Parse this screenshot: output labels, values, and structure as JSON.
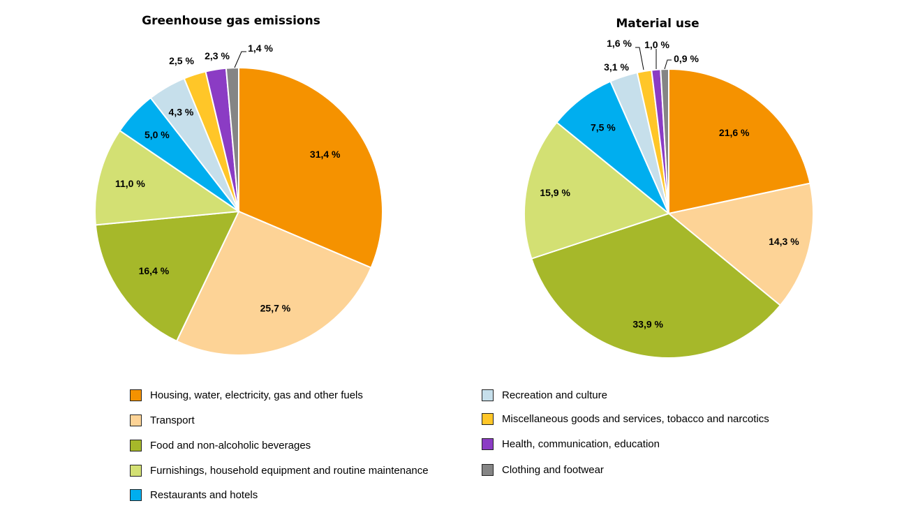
{
  "categories": [
    {
      "key": "housing",
      "label": "Housing, water, electricity, gas and other fuels",
      "color": "#F59200"
    },
    {
      "key": "transport",
      "label": "Transport",
      "color": "#FDD396"
    },
    {
      "key": "food",
      "label": "Food and non-alcoholic beverages",
      "color": "#A6B82A"
    },
    {
      "key": "furnishings",
      "label": "Furnishings, household equipment and routine maintenance",
      "color": "#D3E073"
    },
    {
      "key": "restaurants",
      "label": "Restaurants and hotels",
      "color": "#00AEEF"
    },
    {
      "key": "recreation",
      "label": "Recreation and culture",
      "color": "#C6DFEB"
    },
    {
      "key": "misc",
      "label": "Miscellaneous goods and services, tobacco and narcotics",
      "color": "#FFC628"
    },
    {
      "key": "health",
      "label": "Health, communication, education",
      "color": "#8B3CC4"
    },
    {
      "key": "clothing",
      "label": "Clothing and footwear",
      "color": "#858585"
    }
  ],
  "chart_data": [
    {
      "type": "pie",
      "title": "Greenhouse gas emissions",
      "categories": [
        "Housing, water, electricity, gas and other fuels",
        "Transport",
        "Food and non-alcoholic beverages",
        "Furnishings, household equipment and routine maintenance",
        "Restaurants and hotels",
        "Recreation and culture",
        "Miscellaneous goods and services, tobacco and narcotics",
        "Health, communication, education",
        "Clothing and footwear"
      ],
      "values": [
        31.4,
        25.7,
        16.4,
        11.0,
        5.0,
        4.3,
        2.5,
        2.3,
        1.4
      ],
      "labels": [
        "31,4 %",
        "25,7 %",
        "16,4 %",
        "11,0 %",
        "5,0 %",
        "4,3 %",
        "2,5 %",
        "2,3 %",
        "1,4 %"
      ],
      "unit": "%",
      "start": "12 o'clock, clockwise"
    },
    {
      "type": "pie",
      "title": "Material use",
      "categories": [
        "Housing, water, electricity, gas and other fuels",
        "Transport",
        "Food and non-alcoholic beverages",
        "Furnishings, household equipment and routine maintenance",
        "Restaurants and hotels",
        "Recreation and culture",
        "Miscellaneous goods and services, tobacco and narcotics",
        "Health, communication, education",
        "Clothing and footwear"
      ],
      "values": [
        21.6,
        14.3,
        33.9,
        15.9,
        7.5,
        3.1,
        1.6,
        1.0,
        0.9
      ],
      "labels": [
        "21,6 %",
        "14,3 %",
        "33,9 %",
        "15,9 %",
        "7,5 %",
        "3,1 %",
        "1,6 %",
        "1,0 %",
        "0,9 %"
      ],
      "unit": "%",
      "start": "12 o'clock, clockwise"
    }
  ],
  "legend": {
    "placement": "bottom",
    "items": [
      "Housing, water, electricity, gas and other fuels",
      "Transport",
      "Food and non-alcoholic beverages",
      "Furnishings, household equipment and routine maintenance",
      "Restaurants and hotels",
      "Recreation and culture",
      "Miscellaneous goods and services, tobacco and narcotics",
      "Health, communication, education",
      "Clothing and footwear"
    ]
  }
}
